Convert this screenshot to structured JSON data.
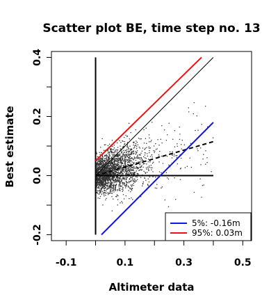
{
  "chart_data": {
    "type": "scatter",
    "title": "Scatter plot BE, time step no. 13",
    "xlabel": "Altimeter data",
    "ylabel": "Best estimate",
    "xlim": [
      -0.15,
      0.53
    ],
    "ylim": [
      -0.22,
      0.42
    ],
    "xticks": [
      "-0.1",
      "0.1",
      "0.3",
      "0.5"
    ],
    "xtick_values": [
      -0.1,
      0.1,
      0.3,
      0.5
    ],
    "xtick_minor": [
      0.0,
      0.2,
      0.4
    ],
    "yticks": [
      "-0.2",
      "0.0",
      "0.2",
      "0.4"
    ],
    "ytick_values": [
      -0.2,
      0.0,
      0.2,
      0.4
    ],
    "ytick_minor": [
      -0.1,
      0.1,
      0.3
    ],
    "grid": false,
    "legend_position": "bottom-right",
    "point_count": 2400,
    "points_note_color": "#333333",
    "lines": [
      {
        "role": "identity",
        "color": "#000000",
        "style": "solid",
        "width": 1,
        "x": [
          0.0,
          0.4
        ],
        "y": [
          0.0,
          0.4
        ]
      },
      {
        "role": "zero-y",
        "color": "#000000",
        "style": "solid",
        "width": 2,
        "x": [
          0.0,
          0.4
        ],
        "y": [
          0.0,
          0.0
        ]
      },
      {
        "role": "zero-x",
        "color": "#000000",
        "style": "solid",
        "width": 2,
        "x": [
          0.0,
          0.0
        ],
        "y": [
          -0.2,
          0.4
        ]
      },
      {
        "role": "regression",
        "color": "#000000",
        "style": "dashed",
        "width": 2,
        "x": [
          0.0,
          0.4
        ],
        "y": [
          0.0,
          0.115
        ]
      },
      {
        "role": "q95",
        "name": "95%:  0.03m",
        "color": "#ee1111",
        "style": "solid",
        "width": 2,
        "x": [
          0.0,
          0.36
        ],
        "y": [
          0.05,
          0.4
        ]
      },
      {
        "role": "q05",
        "name": "5%: -0.16m",
        "color": "#1111ee",
        "style": "solid",
        "width": 2,
        "x": [
          0.02,
          0.4
        ],
        "y": [
          -0.2,
          0.18
        ]
      }
    ],
    "legend": [
      {
        "label": "5%: -0.16m",
        "color": "#1111ee"
      },
      {
        "label": "95%:  0.03m",
        "color": "#ee1111"
      }
    ]
  }
}
